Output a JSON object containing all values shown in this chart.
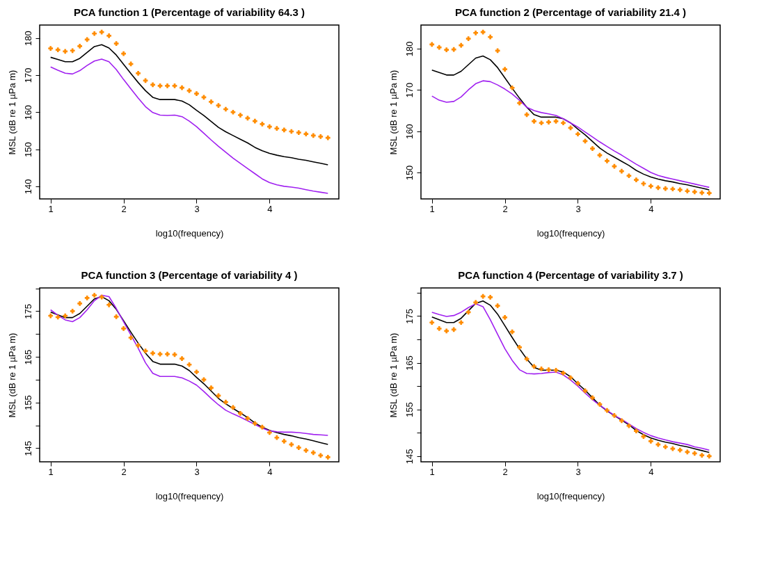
{
  "chart_data": [
    {
      "type": "line",
      "title": "PCA function 1 (Percentage of variability 64.3 )",
      "xlabel": "log10(frequency)",
      "ylabel": "MSL (dB re 1 µPa m)",
      "x": [
        1.0,
        1.1,
        1.2,
        1.3,
        1.4,
        1.5,
        1.6,
        1.7,
        1.8,
        1.9,
        2.0,
        2.1,
        2.2,
        2.3,
        2.4,
        2.5,
        2.6,
        2.7,
        2.8,
        2.9,
        3.0,
        3.1,
        3.2,
        3.3,
        3.4,
        3.5,
        3.6,
        3.7,
        3.8,
        3.9,
        4.0,
        4.1,
        4.2,
        4.3,
        4.4,
        4.5,
        4.6,
        4.7,
        4.8
      ],
      "xlim": [
        0.85,
        4.95
      ],
      "xticks": [
        1,
        2,
        3,
        4
      ],
      "ylim": [
        136.6,
        183.5
      ],
      "yticks": [
        140,
        150,
        160,
        170,
        180
      ],
      "grid": false,
      "series": [
        {
          "color": "#000000",
          "values": [
            174.8,
            174.2,
            173.6,
            173.6,
            174.5,
            176.1,
            177.7,
            178.2,
            177.3,
            175.4,
            172.9,
            170.4,
            168,
            165.8,
            164,
            163.4,
            163.4,
            163.4,
            163,
            162,
            160.5,
            159.1,
            157.5,
            155.9,
            154.7,
            153.7,
            152.7,
            151.7,
            150.5,
            149.6,
            148.9,
            148.4,
            148,
            147.7,
            147.3,
            147,
            146.6,
            146.2,
            145.8
          ]
        },
        {
          "type": "scatter",
          "marker": "cross",
          "color": "#ff8c00",
          "values": [
            177.2,
            176.8,
            176.4,
            176.6,
            177.8,
            179.6,
            181.2,
            181.6,
            180.6,
            178.5,
            175.8,
            173,
            170.5,
            168.5,
            167.4,
            167.1,
            167.1,
            167.1,
            166.6,
            165.8,
            165,
            164,
            162.8,
            161.8,
            160.8,
            160,
            159.2,
            158.4,
            157.6,
            156.8,
            156.1,
            155.6,
            155.2,
            154.8,
            154.5,
            154.1,
            153.7,
            153.4,
            153.1
          ]
        },
        {
          "color": "#a020f0",
          "values": [
            172.2,
            171.3,
            170.5,
            170.3,
            171.2,
            172.6,
            173.8,
            174.3,
            173.6,
            171.5,
            168.8,
            166.3,
            163.8,
            161.5,
            159.9,
            159.2,
            159.1,
            159.2,
            158.8,
            157.6,
            156.1,
            154.3,
            152.5,
            150.8,
            149.2,
            147.6,
            146.2,
            144.8,
            143.4,
            142,
            141,
            140.4,
            140,
            139.8,
            139.5,
            139.1,
            138.7,
            138.4,
            138.1
          ]
        }
      ]
    },
    {
      "type": "line",
      "title": "PCA function 2 (Percentage of variability 21.4 )",
      "xlabel": "log10(frequency)",
      "ylabel": "MSL (dB re 1 µPa m)",
      "x": [
        1.0,
        1.1,
        1.2,
        1.3,
        1.4,
        1.5,
        1.6,
        1.7,
        1.8,
        1.9,
        2.0,
        2.1,
        2.2,
        2.3,
        2.4,
        2.5,
        2.6,
        2.7,
        2.8,
        2.9,
        3.0,
        3.1,
        3.2,
        3.3,
        3.4,
        3.5,
        3.6,
        3.7,
        3.8,
        3.9,
        4.0,
        4.1,
        4.2,
        4.3,
        4.4,
        4.5,
        4.6,
        4.7,
        4.8
      ],
      "xlim": [
        0.85,
        4.95
      ],
      "xticks": [
        1,
        2,
        3,
        4
      ],
      "ylim": [
        143.6,
        185.7
      ],
      "yticks": [
        150,
        160,
        170,
        180
      ],
      "grid": false,
      "series": [
        {
          "color": "#000000",
          "values": [
            174.8,
            174.2,
            173.6,
            173.6,
            174.5,
            176.1,
            177.7,
            178.2,
            177.3,
            175.4,
            172.9,
            170.4,
            168,
            165.8,
            164,
            163.4,
            163.4,
            163.4,
            163,
            162,
            160.5,
            159.1,
            157.5,
            155.9,
            154.7,
            153.7,
            152.7,
            151.7,
            150.5,
            149.6,
            148.9,
            148.4,
            148,
            147.7,
            147.3,
            147,
            146.6,
            146.2,
            145.8
          ]
        },
        {
          "type": "scatter",
          "marker": "cross",
          "color": "#ff8c00",
          "values": [
            181,
            180.3,
            179.7,
            179.8,
            180.8,
            182.4,
            183.8,
            184,
            182.8,
            179.5,
            175,
            170.5,
            166.8,
            164,
            162.4,
            162,
            162.2,
            162.4,
            162,
            160.8,
            159.3,
            157.6,
            155.8,
            154.2,
            152.8,
            151.5,
            150.3,
            149.2,
            148.2,
            147.3,
            146.7,
            146.3,
            146.1,
            146,
            145.8,
            145.5,
            145.3,
            145.1,
            145
          ]
        },
        {
          "color": "#a020f0",
          "values": [
            168.5,
            167.5,
            167,
            167.2,
            168.3,
            170,
            171.5,
            172.2,
            172,
            171.2,
            170.2,
            169,
            167.5,
            165.8,
            165,
            164.5,
            164.2,
            163.8,
            163,
            162,
            161,
            159.8,
            158.6,
            157.4,
            156.3,
            155.2,
            154.2,
            153.1,
            152,
            151,
            150,
            149.3,
            148.8,
            148.4,
            148,
            147.6,
            147.2,
            146.8,
            146.4
          ]
        }
      ]
    },
    {
      "type": "line",
      "title": "PCA function 3 (Percentage of variability 4 )",
      "xlabel": "log10(frequency)",
      "ylabel": "MSL (dB re 1 µPa m)",
      "x": [
        1.0,
        1.1,
        1.2,
        1.3,
        1.4,
        1.5,
        1.6,
        1.7,
        1.8,
        1.9,
        2.0,
        2.1,
        2.2,
        2.3,
        2.4,
        2.5,
        2.6,
        2.7,
        2.8,
        2.9,
        3.0,
        3.1,
        3.2,
        3.3,
        3.4,
        3.5,
        3.6,
        3.7,
        3.8,
        3.9,
        4.0,
        4.1,
        4.2,
        4.3,
        4.4,
        4.5,
        4.6,
        4.7,
        4.8
      ],
      "xlim": [
        0.85,
        4.95
      ],
      "xticks": [
        1,
        2,
        3,
        4
      ],
      "ylim": [
        142,
        180.1
      ],
      "yticks": [
        145,
        {
          "value": 150,
          "label": null
        },
        155,
        {
          "value": 160,
          "label": null
        },
        165,
        {
          "value": 170,
          "label": null
        },
        175,
        {
          "value": 180,
          "label": null
        }
      ],
      "grid": false,
      "series": [
        {
          "color": "#000000",
          "values": [
            174.8,
            174.2,
            173.6,
            173.6,
            174.5,
            176.1,
            177.7,
            178.2,
            177.3,
            175.4,
            172.9,
            170.4,
            168,
            165.8,
            164,
            163.4,
            163.4,
            163.4,
            163,
            162,
            160.5,
            159.1,
            157.5,
            155.9,
            154.7,
            153.7,
            152.7,
            151.7,
            150.5,
            149.6,
            148.9,
            148.4,
            148,
            147.7,
            147.3,
            147,
            146.6,
            146.2,
            145.8
          ]
        },
        {
          "type": "scatter",
          "marker": "cross",
          "color": "#ff8c00",
          "values": [
            174,
            173.7,
            174,
            175,
            176.7,
            177.9,
            178.5,
            178.1,
            176.4,
            173.8,
            171.2,
            169.2,
            167.5,
            166.3,
            165.8,
            165.6,
            165.6,
            165.5,
            164.6,
            163.3,
            161.7,
            160,
            158.2,
            156.5,
            155.1,
            153.9,
            152.6,
            151.5,
            150.4,
            149.6,
            148.4,
            147.3,
            146.5,
            145.8,
            145.1,
            144.5,
            144,
            143.4,
            143
          ]
        },
        {
          "color": "#a020f0",
          "values": [
            175.3,
            174.1,
            173.1,
            172.7,
            173.6,
            175.3,
            177.3,
            178.5,
            178.2,
            175.6,
            172.7,
            169.8,
            166.9,
            163.7,
            161.4,
            160.7,
            160.7,
            160.7,
            160.4,
            159.7,
            158.8,
            157.4,
            155.9,
            154.5,
            153.3,
            152.5,
            151.8,
            151,
            150.2,
            149.4,
            148.8,
            148.6,
            148.5,
            148.5,
            148.4,
            148.2,
            148,
            147.9,
            147.8
          ]
        }
      ]
    },
    {
      "type": "line",
      "title": "PCA function 4 (Percentage of variability 3.7 )",
      "xlabel": "log10(frequency)",
      "ylabel": "MSL (dB re 1 µPa m)",
      "x": [
        1.0,
        1.1,
        1.2,
        1.3,
        1.4,
        1.5,
        1.6,
        1.7,
        1.8,
        1.9,
        2.0,
        2.1,
        2.2,
        2.3,
        2.4,
        2.5,
        2.6,
        2.7,
        2.8,
        2.9,
        3.0,
        3.1,
        3.2,
        3.3,
        3.4,
        3.5,
        3.6,
        3.7,
        3.8,
        3.9,
        4.0,
        4.1,
        4.2,
        4.3,
        4.4,
        4.5,
        4.6,
        4.7,
        4.8
      ],
      "xlim": [
        0.85,
        4.95
      ],
      "xticks": [
        1,
        2,
        3,
        4
      ],
      "ylim": [
        143.8,
        181
      ],
      "yticks": [
        145,
        {
          "value": 150,
          "label": null
        },
        155,
        {
          "value": 160,
          "label": null
        },
        165,
        {
          "value": 170,
          "label": null
        },
        175,
        {
          "value": 180,
          "label": null
        }
      ],
      "grid": false,
      "series": [
        {
          "color": "#000000",
          "values": [
            174.8,
            174.2,
            173.6,
            173.6,
            174.5,
            176.1,
            177.7,
            178.2,
            177.3,
            175.4,
            172.9,
            170.4,
            168,
            165.8,
            164,
            163.4,
            163.4,
            163.4,
            163,
            162,
            160.5,
            159.1,
            157.5,
            155.9,
            154.7,
            153.7,
            152.7,
            151.7,
            150.5,
            149.6,
            148.9,
            148.4,
            148,
            147.7,
            147.3,
            147,
            146.6,
            146.2,
            145.8
          ]
        },
        {
          "type": "scatter",
          "marker": "cross",
          "color": "#ff8c00",
          "values": [
            173.6,
            172.3,
            171.8,
            172.1,
            173.6,
            175.8,
            177.9,
            179.2,
            179,
            177.2,
            174.7,
            171.6,
            168.3,
            165.8,
            164.2,
            163.7,
            163.5,
            163.4,
            162.8,
            161.8,
            160.6,
            159,
            157.5,
            156.1,
            154.8,
            153.7,
            152.6,
            151.5,
            150.4,
            149.2,
            148.2,
            147.5,
            147,
            146.6,
            146.3,
            145.9,
            145.6,
            145.2,
            145
          ]
        },
        {
          "color": "#a020f0",
          "values": [
            175.8,
            175.3,
            174.9,
            175.1,
            175.8,
            176.8,
            177.6,
            177,
            174.2,
            171.1,
            168,
            165.5,
            163.5,
            162.7,
            162.6,
            162.7,
            162.9,
            163,
            162.4,
            161.3,
            160,
            158.5,
            157.1,
            155.9,
            154.8,
            153.7,
            152.9,
            151.9,
            150.9,
            150.1,
            149.4,
            148.9,
            148.5,
            148.1,
            147.8,
            147.5,
            147,
            146.7,
            146.3
          ]
        }
      ]
    }
  ]
}
